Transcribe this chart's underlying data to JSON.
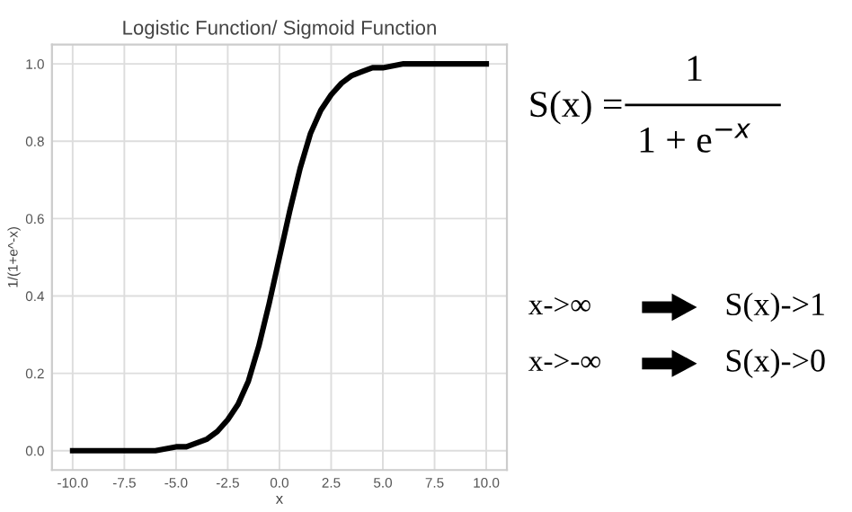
{
  "chart_data": {
    "type": "line",
    "title": "Logistic Function/ Sigmoid Function",
    "xlabel": "x",
    "ylabel": "1/(1+e^-x)",
    "x": [
      -10,
      -9,
      -8,
      -7,
      -6,
      -5,
      -4.5,
      -4,
      -3.5,
      -3,
      -2.5,
      -2,
      -1.5,
      -1,
      -0.5,
      0,
      0.5,
      1,
      1.5,
      2,
      2.5,
      3,
      3.5,
      4,
      4.5,
      5,
      6,
      7,
      8,
      9,
      10
    ],
    "series": [
      {
        "color": "#000000",
        "values": [
          0.0,
          0.0,
          0.0,
          0.0,
          0.0,
          0.01,
          0.01,
          0.02,
          0.03,
          0.05,
          0.08,
          0.12,
          0.18,
          0.27,
          0.38,
          0.5,
          0.62,
          0.73,
          0.82,
          0.88,
          0.92,
          0.95,
          0.97,
          0.98,
          0.99,
          0.99,
          1.0,
          1.0,
          1.0,
          1.0,
          1.0
        ]
      }
    ],
    "xlim": [
      -11,
      11
    ],
    "ylim": [
      -0.05,
      1.05
    ],
    "xticks": [
      {
        "value": -10,
        "label": "-10.0"
      },
      {
        "value": -7.5,
        "label": "-7.5"
      },
      {
        "value": -5,
        "label": "-5.0"
      },
      {
        "value": -2.5,
        "label": "-2.5"
      },
      {
        "value": 0,
        "label": "0.0"
      },
      {
        "value": 2.5,
        "label": "2.5"
      },
      {
        "value": 5,
        "label": "5.0"
      },
      {
        "value": 7.5,
        "label": "7.5"
      },
      {
        "value": 10,
        "label": "10.0"
      }
    ],
    "yticks": [
      {
        "value": 0,
        "label": "0.0"
      },
      {
        "value": 0.2,
        "label": "0.2"
      },
      {
        "value": 0.4,
        "label": "0.4"
      },
      {
        "value": 0.6,
        "label": "0.6"
      },
      {
        "value": 0.8,
        "label": "0.8"
      },
      {
        "value": 1,
        "label": "1.0"
      }
    ],
    "grid": true,
    "marker": "none",
    "line_style": "solid",
    "annotations": [
      "S(x) =",
      "1",
      "1 + e$^{−x}$",
      "x->∞",
      "S(x)->1",
      "x->-∞",
      "S(x)->0"
    ]
  }
}
